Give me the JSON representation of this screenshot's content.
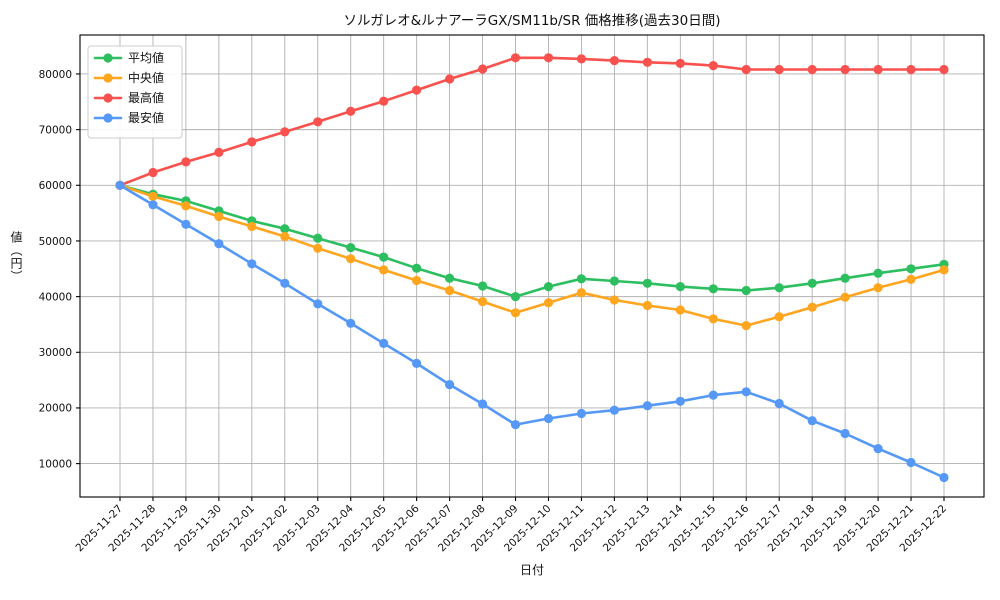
{
  "chart_data": {
    "type": "line",
    "title": "ソルガレオ&ルナアーラGX/SM11b/SR 価格推移(過去30日間)",
    "xlabel": "日付",
    "ylabel": "値（円）",
    "grid": true,
    "legend_position": "upper-left",
    "ylim": [
      4000,
      87000
    ],
    "yticks": [
      10000,
      20000,
      30000,
      40000,
      50000,
      60000,
      70000,
      80000
    ],
    "categories": [
      "2025-11-27",
      "2025-11-28",
      "2025-11-29",
      "2025-11-30",
      "2025-12-01",
      "2025-12-02",
      "2025-12-03",
      "2025-12-04",
      "2025-12-05",
      "2025-12-06",
      "2025-12-07",
      "2025-12-08",
      "2025-12-09",
      "2025-12-10",
      "2025-12-11",
      "2025-12-12",
      "2025-12-13",
      "2025-12-14",
      "2025-12-15",
      "2025-12-16",
      "2025-12-17",
      "2025-12-18",
      "2025-12-19",
      "2025-12-20",
      "2025-12-21",
      "2025-12-22"
    ],
    "series": [
      {
        "name": "平均値",
        "key": "average",
        "color": "#2dbe60",
        "values": [
          60000,
          58400,
          57200,
          55400,
          53600,
          52200,
          50500,
          48800,
          47100,
          45100,
          43300,
          41900,
          40000,
          41800,
          43200,
          42800,
          42400,
          41800,
          41400,
          41100,
          41600,
          42400,
          43300,
          44200,
          45000,
          45800
        ]
      },
      {
        "name": "中央値",
        "key": "median",
        "color": "#ffa51e",
        "values": [
          60000,
          58000,
          56300,
          54400,
          52600,
          50800,
          48700,
          46800,
          44800,
          42900,
          41100,
          39100,
          37100,
          38900,
          40700,
          39400,
          38400,
          37600,
          36000,
          34800,
          36400,
          38100,
          39900,
          41600,
          43100,
          44800
        ]
      },
      {
        "name": "最高値",
        "key": "max",
        "color": "#f8514e",
        "values": [
          60000,
          62300,
          64200,
          65900,
          67800,
          69600,
          71400,
          73300,
          75100,
          77100,
          79100,
          80900,
          82900,
          82900,
          82700,
          82400,
          82100,
          81900,
          81500,
          80800,
          80800,
          80800,
          80800,
          80800,
          80800,
          80800
        ]
      },
      {
        "name": "最安値",
        "key": "min",
        "color": "#5598f6",
        "values": [
          60000,
          56500,
          53000,
          49500,
          45900,
          42400,
          38700,
          35200,
          31600,
          28000,
          24200,
          20700,
          17000,
          18100,
          19000,
          19600,
          20400,
          21200,
          22300,
          22900,
          20800,
          17700,
          15400,
          12700,
          10200,
          7500
        ]
      }
    ],
    "style": {
      "grid_color": "#b0b0b0",
      "axis_color": "#000000",
      "background": "#ffffff",
      "line_width": 2.6,
      "marker_radius": 4.6
    }
  }
}
